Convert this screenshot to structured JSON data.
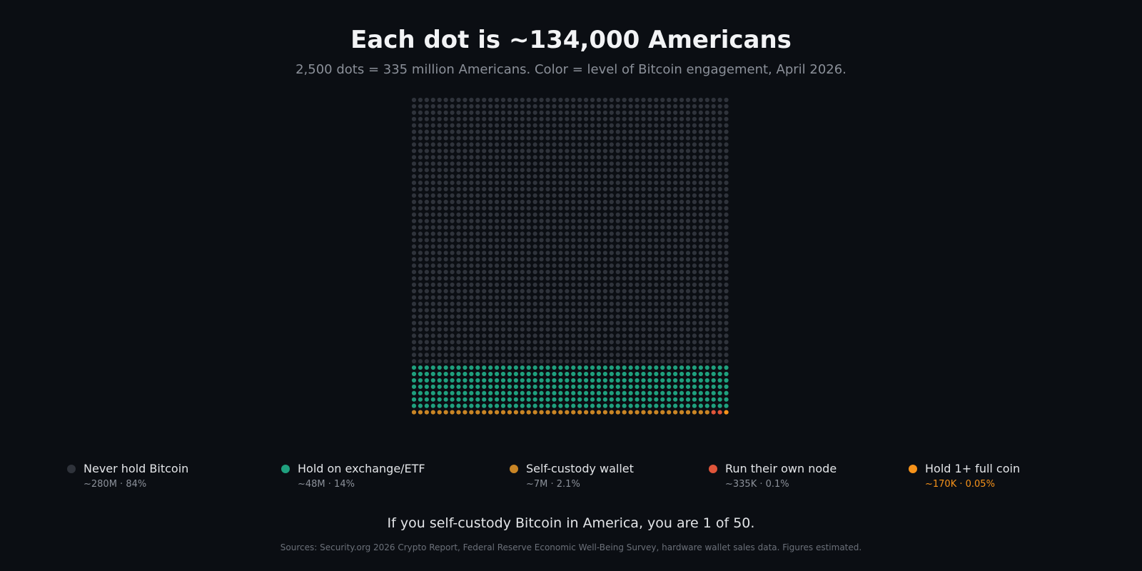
{
  "chart_data": {
    "type": "waffle",
    "title": "Each dot is ~134,000 Americans",
    "subtitle": "2,500 dots = 335 million Americans. Color = level of Bitcoin engagement, April 2026.",
    "total_dots": 2500,
    "columns": 50,
    "rows": 50,
    "people_per_dot": 134000,
    "categories": [
      {
        "name": "Never hold Bitcoin",
        "stat": "~280M · 84%",
        "dots": 2100,
        "color": "#2f333b",
        "stat_color": "#8b9099"
      },
      {
        "name": "Hold on exchange/ETF",
        "stat": "~48M · 14%",
        "dots": 350,
        "color": "#1fa07e",
        "stat_color": "#8b9099"
      },
      {
        "name": "Self-custody wallet",
        "stat": "~7M · 2.1%",
        "dots": 47,
        "color": "#c98525",
        "stat_color": "#8b9099"
      },
      {
        "name": "Run their own node",
        "stat": "~335K · 0.1%",
        "dots": 2,
        "color": "#e0553a",
        "stat_color": "#8b9099"
      },
      {
        "name": "Hold 1+ full coin",
        "stat": "~170K · 0.05%",
        "dots": 1,
        "color": "#f7931a",
        "stat_color": "#f7931a"
      }
    ]
  },
  "footer": {
    "tagline": "If you self-custody Bitcoin in America, you are 1 of 50.",
    "sources": "Sources: Security.org 2026 Crypto Report, Federal Reserve Economic Well-Being Survey, hardware wallet sales data. Figures estimated."
  }
}
